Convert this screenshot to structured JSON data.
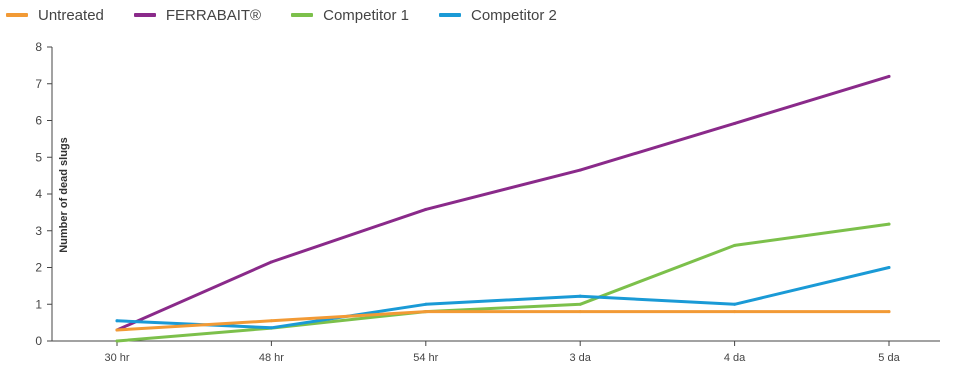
{
  "chart_data": {
    "type": "line",
    "categories": [
      "30 hr",
      "48 hr",
      "54 hr",
      "3 da",
      "4 da",
      "5 da"
    ],
    "series": [
      {
        "name": "Untreated",
        "color": "#f29a35",
        "values": [
          0.3,
          0.55,
          0.8,
          0.8,
          0.8,
          0.8
        ]
      },
      {
        "name": "FERRABAIT®",
        "color": "#8a2a8a",
        "values": [
          0.3,
          2.15,
          3.58,
          4.65,
          5.92,
          7.2
        ]
      },
      {
        "name": "Competitor 1",
        "color": "#7cc04b",
        "values": [
          0.0,
          0.35,
          0.8,
          1.0,
          2.6,
          3.18
        ]
      },
      {
        "name": "Competitor 2",
        "color": "#1a9ad6",
        "values": [
          0.55,
          0.36,
          1.0,
          1.22,
          1.0,
          2.0
        ]
      }
    ],
    "ylabel": "Number of dead slugs",
    "xlabel": "",
    "ylim": [
      0,
      8
    ],
    "yticks": [
      0,
      1,
      2,
      3,
      4,
      5,
      6,
      7,
      8
    ],
    "grid": false,
    "legend_position": "top-left"
  }
}
